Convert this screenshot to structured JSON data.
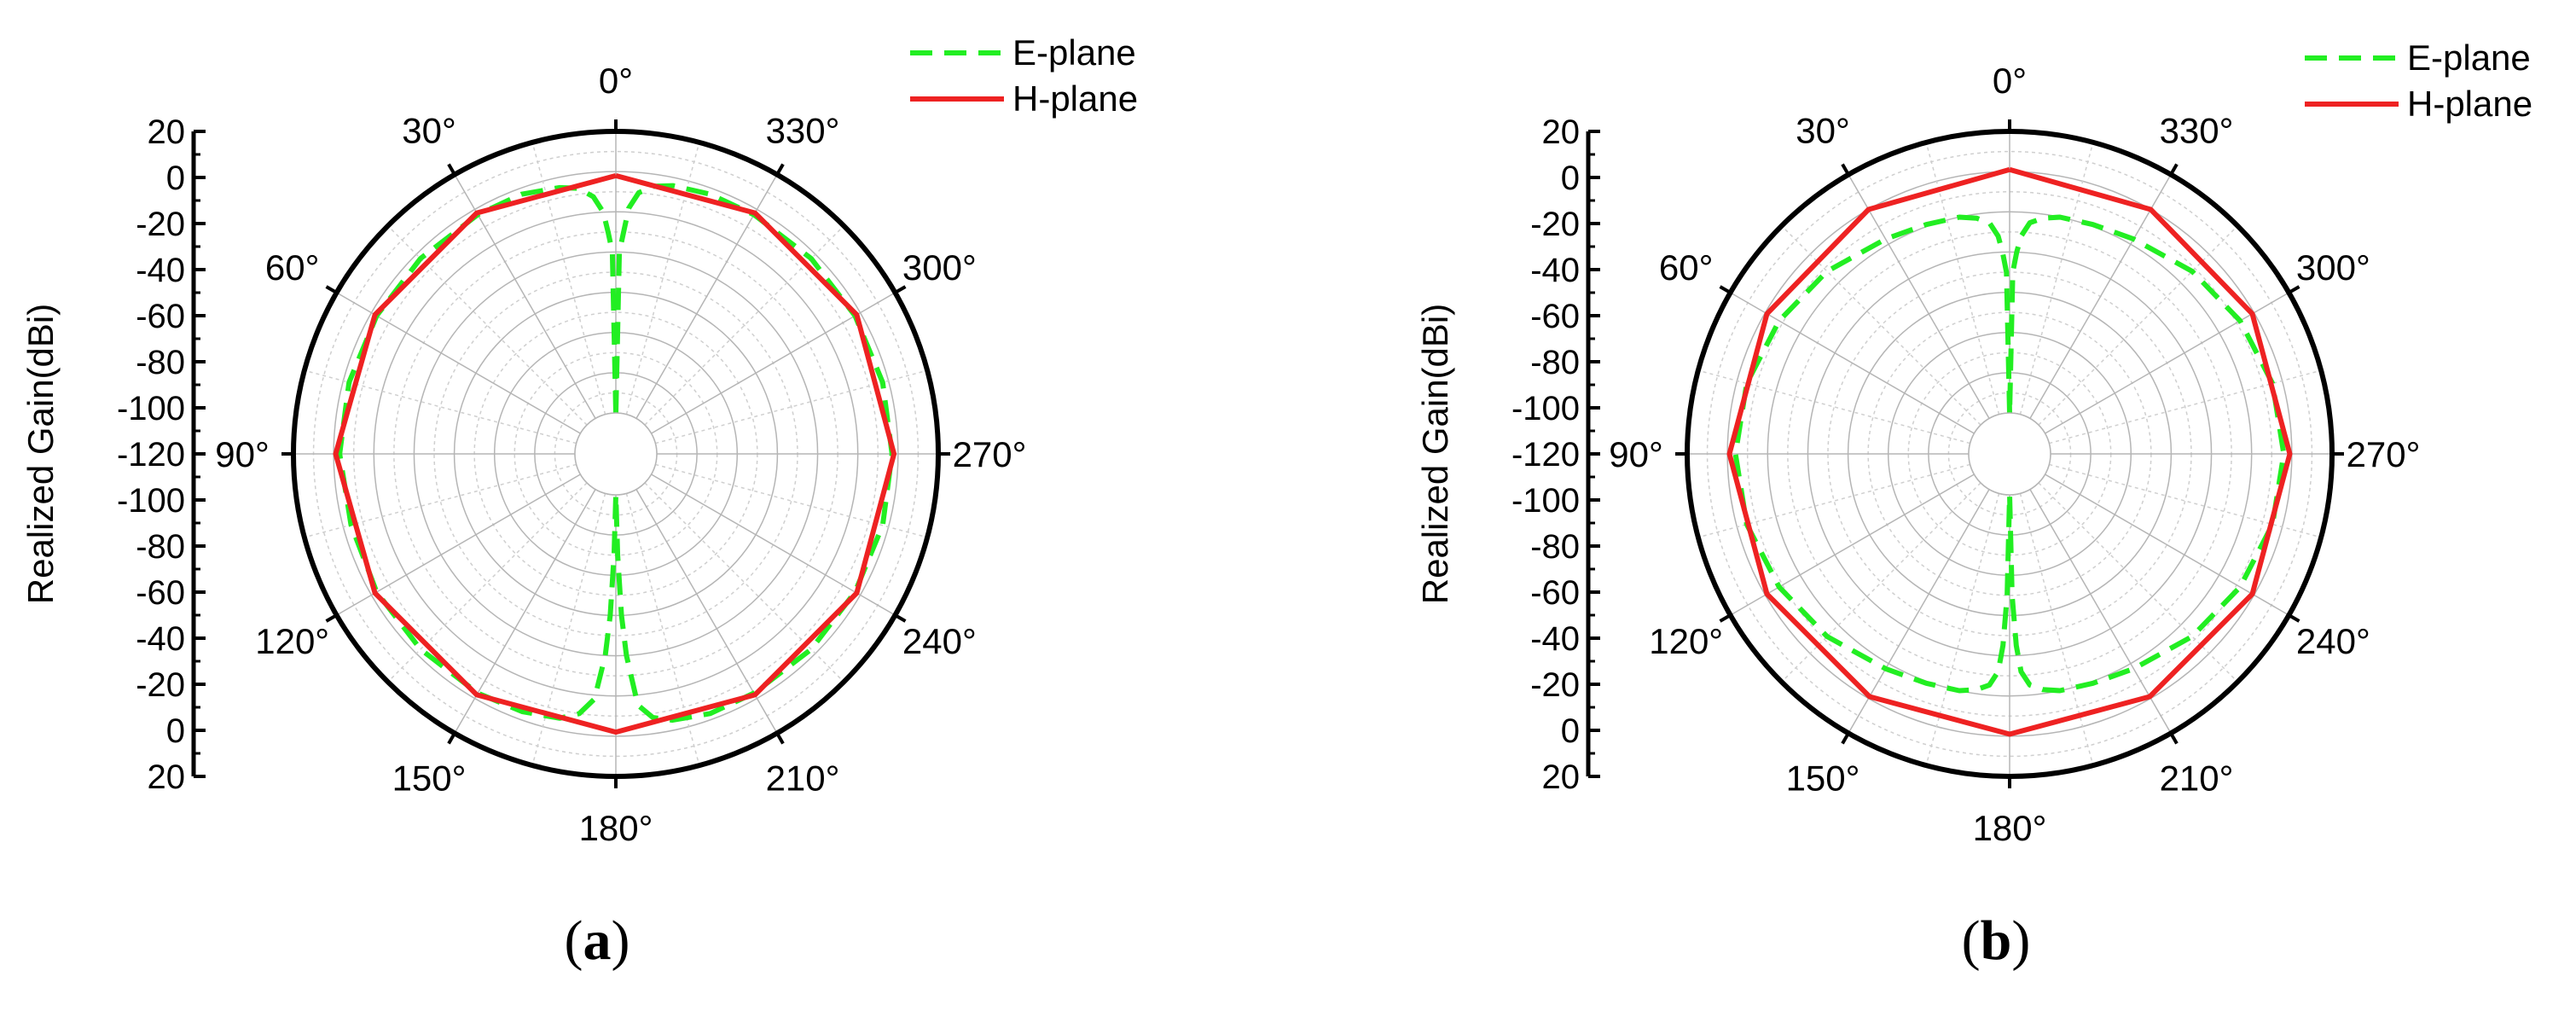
{
  "chart_data": [
    {
      "type": "polar-line",
      "panel_label": "a",
      "ylabel": "Realized Gain(dBi)",
      "radial_ticks": [
        "20",
        "0",
        "-20",
        "-40",
        "-60",
        "-80",
        "-100",
        "-120",
        "-100",
        "-80",
        "-60",
        "-40",
        "-20",
        "0",
        "20"
      ],
      "angle_ticks": [
        "0°",
        "30°",
        "60°",
        "90°",
        "120°",
        "150°",
        "180°",
        "210°",
        "240°",
        "270°",
        "300°",
        "330°"
      ],
      "rlim": [
        -120,
        20
      ],
      "angle_direction": "counterclockwise",
      "zero_location": "top",
      "grid": true,
      "legend": "top-right",
      "series": [
        {
          "name": "E-plane",
          "color": "#22ee22",
          "style": "dashed",
          "theta": [
            0,
            1,
            2,
            3,
            5,
            8,
            12,
            20,
            30,
            45,
            60,
            75,
            90,
            105,
            120,
            135,
            150,
            160,
            168,
            172,
            175,
            177,
            178,
            179,
            180,
            181,
            182,
            183,
            185,
            188,
            192,
            200,
            210,
            225,
            240,
            255,
            270,
            285,
            300,
            315,
            330,
            340,
            348,
            352,
            355,
            357,
            358,
            359,
            360
          ],
          "r": [
            -120,
            -40,
            -30,
            -20,
            -12,
            -7,
            -5,
            -3,
            -3,
            -3,
            -3,
            -3,
            -3,
            -4,
            -3,
            -3,
            -3,
            -4,
            -6,
            -10,
            -18,
            -40,
            -60,
            -90,
            -120,
            -90,
            -60,
            -40,
            -15,
            -8,
            -5,
            -3,
            -3,
            -3,
            -3,
            -3,
            -3,
            -3,
            -3,
            -3,
            -3,
            -3,
            -4,
            -6,
            -10,
            -18,
            -30,
            -40,
            -120
          ]
        },
        {
          "name": "H-plane",
          "color": "#ee2222",
          "style": "solid",
          "theta": [
            0,
            30,
            60,
            90,
            120,
            150,
            180,
            210,
            240,
            270,
            300,
            330,
            360
          ],
          "r": [
            -2,
            -2,
            -2,
            -1,
            -2,
            -2,
            -2,
            -2,
            -2,
            -2,
            -2,
            -2,
            -2
          ]
        }
      ]
    },
    {
      "type": "polar-line",
      "panel_label": "b",
      "ylabel": "Realized Gain(dBi)",
      "radial_ticks": [
        "20",
        "0",
        "-20",
        "-40",
        "-60",
        "-80",
        "-100",
        "-120",
        "-100",
        "-80",
        "-60",
        "-40",
        "-20",
        "0",
        "20"
      ],
      "angle_ticks": [
        "0°",
        "30°",
        "60°",
        "90°",
        "120°",
        "150°",
        "180°",
        "210°",
        "240°",
        "270°",
        "300°",
        "330°"
      ],
      "rlim": [
        -120,
        20
      ],
      "angle_direction": "counterclockwise",
      "zero_location": "top",
      "grid": true,
      "legend": "top-right",
      "series": [
        {
          "name": "E-plane",
          "color": "#22ee22",
          "style": "dashed",
          "theta": [
            0,
            1,
            2,
            3,
            5,
            8,
            12,
            20,
            30,
            45,
            60,
            75,
            90,
            105,
            120,
            135,
            150,
            160,
            168,
            172,
            175,
            177,
            178,
            179,
            180,
            181,
            182,
            183,
            185,
            188,
            192,
            200,
            210,
            225,
            240,
            255,
            270,
            285,
            300,
            315,
            330,
            340,
            348,
            352,
            355,
            357,
            358,
            359,
            360
          ],
          "r": [
            -120,
            -50,
            -40,
            -32,
            -25,
            -22,
            -20,
            -19,
            -17,
            -12,
            -8,
            -5,
            -4,
            -5,
            -8,
            -12,
            -17,
            -19,
            -20,
            -22,
            -25,
            -32,
            -45,
            -70,
            -120,
            -70,
            -45,
            -32,
            -25,
            -22,
            -20,
            -19,
            -17,
            -12,
            -8,
            -5,
            -4,
            -5,
            -8,
            -12,
            -17,
            -19,
            -20,
            -22,
            -25,
            -32,
            -40,
            -50,
            -120
          ]
        },
        {
          "name": "H-plane",
          "color": "#ee2222",
          "style": "solid",
          "theta": [
            0,
            30,
            60,
            90,
            120,
            150,
            180,
            210,
            240,
            270,
            300,
            330,
            360
          ],
          "r": [
            1,
            0,
            -1,
            -1,
            -1,
            -1,
            -1,
            -1,
            -1,
            -1,
            -1,
            0,
            1
          ]
        }
      ]
    }
  ]
}
